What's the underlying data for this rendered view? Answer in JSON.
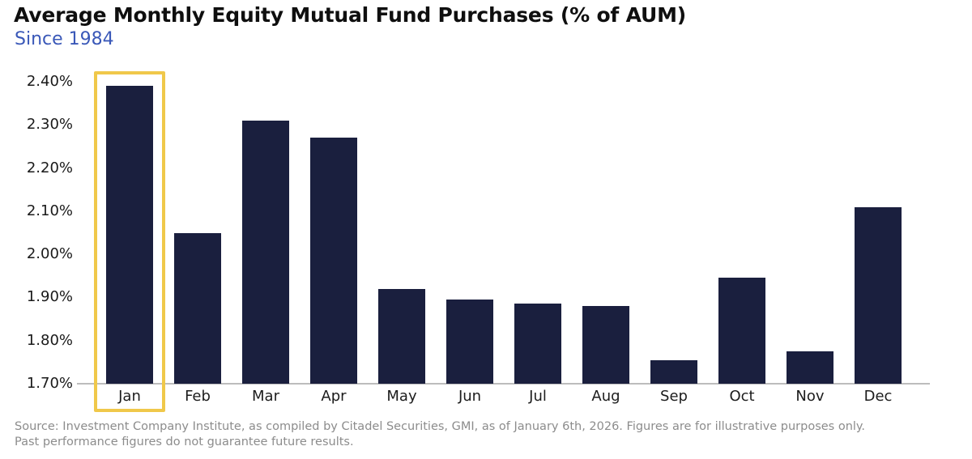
{
  "header": {
    "title": "Average Monthly Equity Mutual Fund Purchases (% of AUM)",
    "subtitle": "Since 1984"
  },
  "chart_data": {
    "type": "bar",
    "title": "Average Monthly Equity Mutual Fund Purchases (% of AUM)",
    "subtitle": "Since 1984",
    "categories": [
      "Jan",
      "Feb",
      "Mar",
      "Apr",
      "May",
      "Jun",
      "Jul",
      "Aug",
      "Sep",
      "Oct",
      "Nov",
      "Dec"
    ],
    "values": [
      2.39,
      2.05,
      2.31,
      2.27,
      1.92,
      1.895,
      1.885,
      1.88,
      1.755,
      1.945,
      1.775,
      2.11
    ],
    "xlabel": "",
    "ylabel": "",
    "ylim": [
      1.7,
      2.4
    ],
    "ytick_step": 0.1,
    "yticks": [
      "2.40%",
      "2.30%",
      "2.20%",
      "2.10%",
      "2.00%",
      "1.90%",
      "1.80%",
      "1.70%"
    ],
    "grid": false,
    "legend": "none",
    "highlight": {
      "category": "Jan"
    }
  },
  "colors": {
    "bar": "#1a1f3e",
    "highlight": "#f0c84a",
    "subtitle": "#3a58b8",
    "axis_line": "#bdbdbd",
    "tick_label": "#1a1a1a",
    "source_text": "#8c8c8c"
  },
  "footer": {
    "source_line1": "Source: Investment Company Institute, as compiled by Citadel Securities, GMI, as of January 6th, 2026. Figures are for illustrative purposes only.",
    "source_line2": "Past performance figures do not guarantee future results."
  }
}
